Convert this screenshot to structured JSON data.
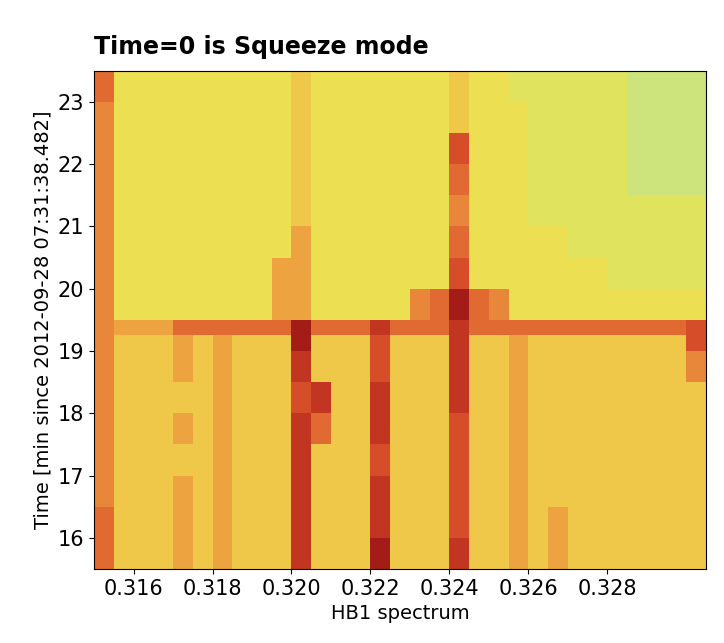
{
  "chart_data": {
    "type": "heatmap",
    "title": "Time=0 is Squeeze mode",
    "x_label": "HB1 spectrum",
    "y_label": "Time [min since 2012-09-28 07:31:38.482]",
    "x_edges": [
      0.315,
      0.3155,
      0.316,
      0.3165,
      0.317,
      0.3175,
      0.318,
      0.3185,
      0.319,
      0.3195,
      0.32,
      0.3205,
      0.321,
      0.3215,
      0.322,
      0.3225,
      0.323,
      0.3235,
      0.324,
      0.3245,
      0.325,
      0.3255,
      0.326,
      0.3265,
      0.327,
      0.3275,
      0.328,
      0.3285,
      0.329,
      0.3295,
      0.33,
      0.3305
    ],
    "y_edges": [
      15.5,
      16,
      16.5,
      17,
      17.5,
      18,
      18.5,
      19,
      19.25,
      19.5,
      20,
      20.5,
      21,
      21.5,
      22,
      22.5,
      23,
      23.5
    ],
    "cells": [
      [
        6,
        3,
        3,
        3,
        4,
        3,
        4,
        3,
        3,
        3,
        8,
        3,
        3,
        3,
        9,
        3,
        3,
        3,
        8,
        3,
        3,
        4,
        3,
        4,
        3,
        3,
        3,
        3,
        3,
        3,
        3
      ],
      [
        6,
        3,
        3,
        3,
        4,
        3,
        4,
        3,
        3,
        3,
        8,
        3,
        3,
        3,
        8,
        3,
        3,
        3,
        7,
        3,
        3,
        4,
        3,
        4,
        3,
        3,
        3,
        3,
        3,
        3,
        3
      ],
      [
        5,
        3,
        3,
        3,
        4,
        3,
        4,
        3,
        3,
        3,
        8,
        3,
        3,
        3,
        8,
        3,
        3,
        3,
        7,
        3,
        3,
        4,
        3,
        3,
        3,
        3,
        3,
        3,
        3,
        3,
        3
      ],
      [
        5,
        3,
        3,
        3,
        3,
        3,
        4,
        3,
        3,
        3,
        8,
        3,
        3,
        3,
        7,
        3,
        3,
        3,
        7,
        3,
        3,
        4,
        3,
        3,
        3,
        3,
        3,
        3,
        3,
        3,
        3
      ],
      [
        5,
        3,
        3,
        3,
        4,
        3,
        4,
        3,
        3,
        3,
        8,
        6,
        3,
        3,
        8,
        3,
        3,
        3,
        7,
        3,
        3,
        4,
        3,
        3,
        3,
        3,
        3,
        3,
        3,
        3,
        3
      ],
      [
        5,
        3,
        3,
        3,
        3,
        3,
        4,
        3,
        3,
        3,
        7,
        8,
        3,
        3,
        8,
        3,
        3,
        3,
        8,
        3,
        3,
        4,
        3,
        3,
        3,
        3,
        3,
        3,
        3,
        3,
        3
      ],
      [
        5,
        3,
        3,
        3,
        4,
        3,
        4,
        3,
        3,
        3,
        8,
        3,
        3,
        3,
        7,
        3,
        3,
        3,
        8,
        3,
        3,
        4,
        3,
        3,
        3,
        3,
        3,
        3,
        3,
        3,
        5
      ],
      [
        5,
        3,
        3,
        3,
        4,
        3,
        4,
        3,
        3,
        3,
        9,
        3,
        3,
        3,
        7,
        3,
        3,
        3,
        8,
        3,
        3,
        4,
        3,
        3,
        3,
        3,
        3,
        3,
        3,
        3,
        7
      ],
      [
        5,
        4,
        4,
        4,
        6,
        6,
        6,
        6,
        6,
        6,
        9,
        6,
        6,
        6,
        8,
        6,
        6,
        6,
        8,
        6,
        6,
        6,
        6,
        6,
        6,
        6,
        6,
        6,
        6,
        6,
        7
      ],
      [
        5,
        2,
        2,
        2,
        2,
        2,
        2,
        2,
        2,
        4,
        4,
        2,
        2,
        2,
        2,
        2,
        5,
        6,
        9,
        6,
        5,
        2,
        2,
        2,
        2,
        2,
        2,
        2,
        2,
        2,
        2
      ],
      [
        5,
        2,
        2,
        2,
        2,
        2,
        2,
        2,
        2,
        4,
        4,
        2,
        2,
        2,
        2,
        2,
        2,
        2,
        7,
        2,
        2,
        2,
        2,
        2,
        2,
        2,
        1,
        1,
        1,
        1,
        1
      ],
      [
        5,
        2,
        2,
        2,
        2,
        2,
        2,
        2,
        2,
        2,
        4,
        2,
        2,
        2,
        2,
        2,
        2,
        2,
        6,
        2,
        2,
        2,
        2,
        2,
        1,
        1,
        1,
        1,
        1,
        1,
        1
      ],
      [
        5,
        2,
        2,
        2,
        2,
        2,
        2,
        2,
        2,
        2,
        3,
        2,
        2,
        2,
        2,
        2,
        2,
        2,
        5,
        2,
        2,
        2,
        1,
        1,
        1,
        1,
        1,
        1,
        1,
        1,
        1
      ],
      [
        5,
        2,
        2,
        2,
        2,
        2,
        2,
        2,
        2,
        2,
        3,
        2,
        2,
        2,
        2,
        2,
        2,
        2,
        6,
        2,
        2,
        2,
        1,
        1,
        1,
        1,
        1,
        0,
        0,
        0,
        0
      ],
      [
        5,
        2,
        2,
        2,
        2,
        2,
        2,
        2,
        2,
        2,
        3,
        2,
        2,
        2,
        2,
        2,
        2,
        2,
        7,
        2,
        2,
        2,
        1,
        1,
        1,
        1,
        1,
        0,
        0,
        0,
        0
      ],
      [
        5,
        2,
        2,
        2,
        2,
        2,
        2,
        2,
        2,
        2,
        3,
        2,
        2,
        2,
        2,
        2,
        2,
        2,
        3,
        2,
        2,
        2,
        1,
        1,
        1,
        1,
        1,
        0,
        0,
        0,
        0
      ],
      [
        6,
        2,
        2,
        2,
        2,
        2,
        2,
        2,
        2,
        2,
        3,
        2,
        2,
        2,
        2,
        2,
        2,
        2,
        3,
        2,
        2,
        1,
        1,
        1,
        1,
        1,
        1,
        0,
        0,
        0,
        0
      ]
    ],
    "xlim": [
      0.315,
      0.3305
    ],
    "ylim": [
      15.5,
      23.5
    ],
    "xticks": [
      0.316,
      0.318,
      {
        "value": 0.32,
        "label": "0.320"
      },
      0.322,
      0.324,
      0.326,
      0.328
    ],
    "yticks": [
      16,
      17,
      18,
      19,
      20,
      21,
      22,
      23
    ]
  }
}
